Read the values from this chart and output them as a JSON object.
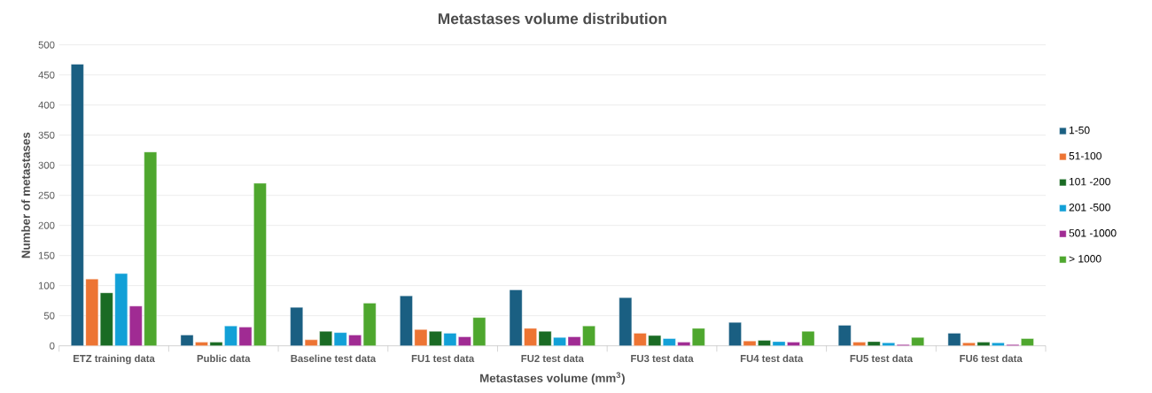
{
  "chart_data": {
    "type": "bar",
    "title": "Metastases volume distribution",
    "xlabel": "Metastases volume (mm$^{3}$)",
    "ylabel": "Number of metastases",
    "categories": [
      "ETZ training data",
      "Public data",
      "Baseline test data",
      "FU1 test data",
      "FU2 test data",
      "FU3 test data",
      "FU4 test data",
      "FU5 test data",
      "FU6 test data"
    ],
    "series": [
      {
        "name": "1-50",
        "color": "#1a5f82",
        "values": [
          468,
          18,
          64,
          83,
          93,
          80,
          39,
          34,
          21
        ]
      },
      {
        "name": "51-100",
        "color": "#ed7433",
        "values": [
          111,
          6,
          10,
          27,
          29,
          21,
          8,
          6,
          5
        ]
      },
      {
        "name": "101 -200",
        "color": "#1a6b24",
        "values": [
          88,
          6,
          24,
          24,
          24,
          17,
          9,
          7,
          6
        ]
      },
      {
        "name": "201 -500",
        "color": "#12a0d7",
        "values": [
          120,
          33,
          22,
          21,
          14,
          12,
          7,
          5,
          5
        ]
      },
      {
        "name": "501 -1000",
        "color": "#a02b93",
        "values": [
          66,
          31,
          18,
          15,
          15,
          6,
          6,
          2,
          2
        ]
      },
      {
        "name": "> 1000",
        "color": "#4ea72e",
        "values": [
          322,
          270,
          71,
          47,
          33,
          29,
          24,
          14,
          12
        ]
      }
    ],
    "ylim": [
      0,
      500
    ],
    "yticks": [
      0,
      50,
      100,
      150,
      200,
      250,
      300,
      350,
      400,
      450,
      500
    ],
    "grid": "y",
    "legend": "right"
  }
}
